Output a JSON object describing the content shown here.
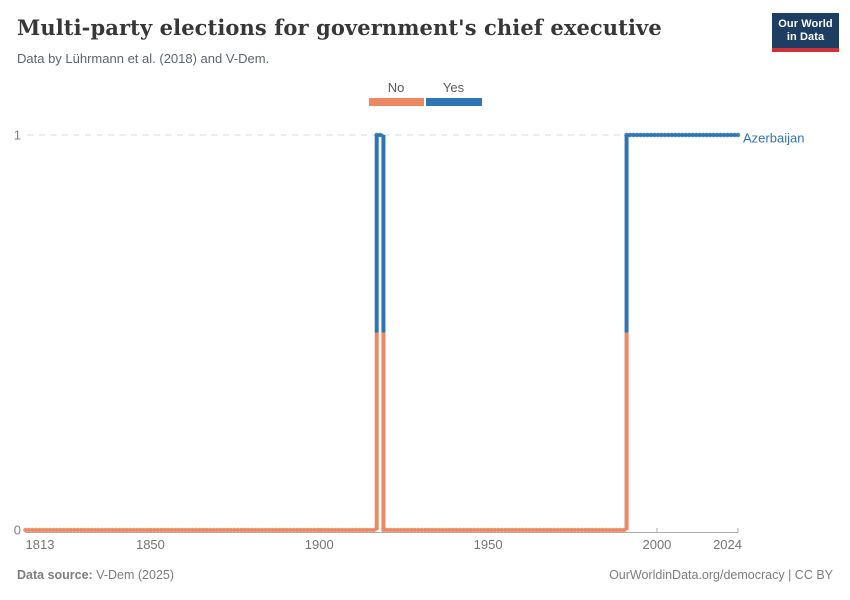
{
  "header": {
    "title": "Multi-party elections for government's chief executive",
    "subtitle": "Data by Lührmann et al. (2018) and V-Dem.",
    "logo": {
      "line1": "Our World",
      "line2": "in Data",
      "bg_color": "#1d3d63",
      "accent_color": "#cf3235"
    }
  },
  "legend": {
    "items": [
      {
        "label": "No",
        "color": "#ee8863"
      },
      {
        "label": "Yes",
        "color": "#2f74b3"
      }
    ]
  },
  "chart_data": {
    "type": "line",
    "subtype": "step-timeline",
    "title": "Multi-party elections for government's chief executive",
    "entity": "Azerbaijan",
    "xlim": [
      1813,
      2024
    ],
    "ylim": [
      0,
      1
    ],
    "x_ticks": [
      1813,
      1850,
      1900,
      1950,
      2000,
      2024
    ],
    "y_ticks": [
      0,
      1
    ],
    "grid": "dashed line at y=1, legend top-center, entity label right of line end",
    "value_labels": {
      "0": "No",
      "1": "Yes"
    },
    "colors": {
      "No": "#ee8863",
      "Yes": "#2f74b3"
    },
    "series": [
      {
        "name": "Azerbaijan",
        "segments": [
          {
            "from": 1813,
            "to": 1917,
            "value": 0,
            "category": "No"
          },
          {
            "from": 1917,
            "to": 1919,
            "value": 1,
            "category": "Yes"
          },
          {
            "from": 1919,
            "to": 1991,
            "value": 0,
            "category": "No"
          },
          {
            "from": 1991,
            "to": 2024,
            "value": 1,
            "category": "Yes"
          }
        ]
      }
    ],
    "axis_color": "#ababab",
    "gridline_color": "#d8d8d8"
  },
  "footer": {
    "source_label": "Data source:",
    "source_value": " V-Dem (2025)",
    "right": "OurWorldinData.org/democracy | CC BY"
  }
}
